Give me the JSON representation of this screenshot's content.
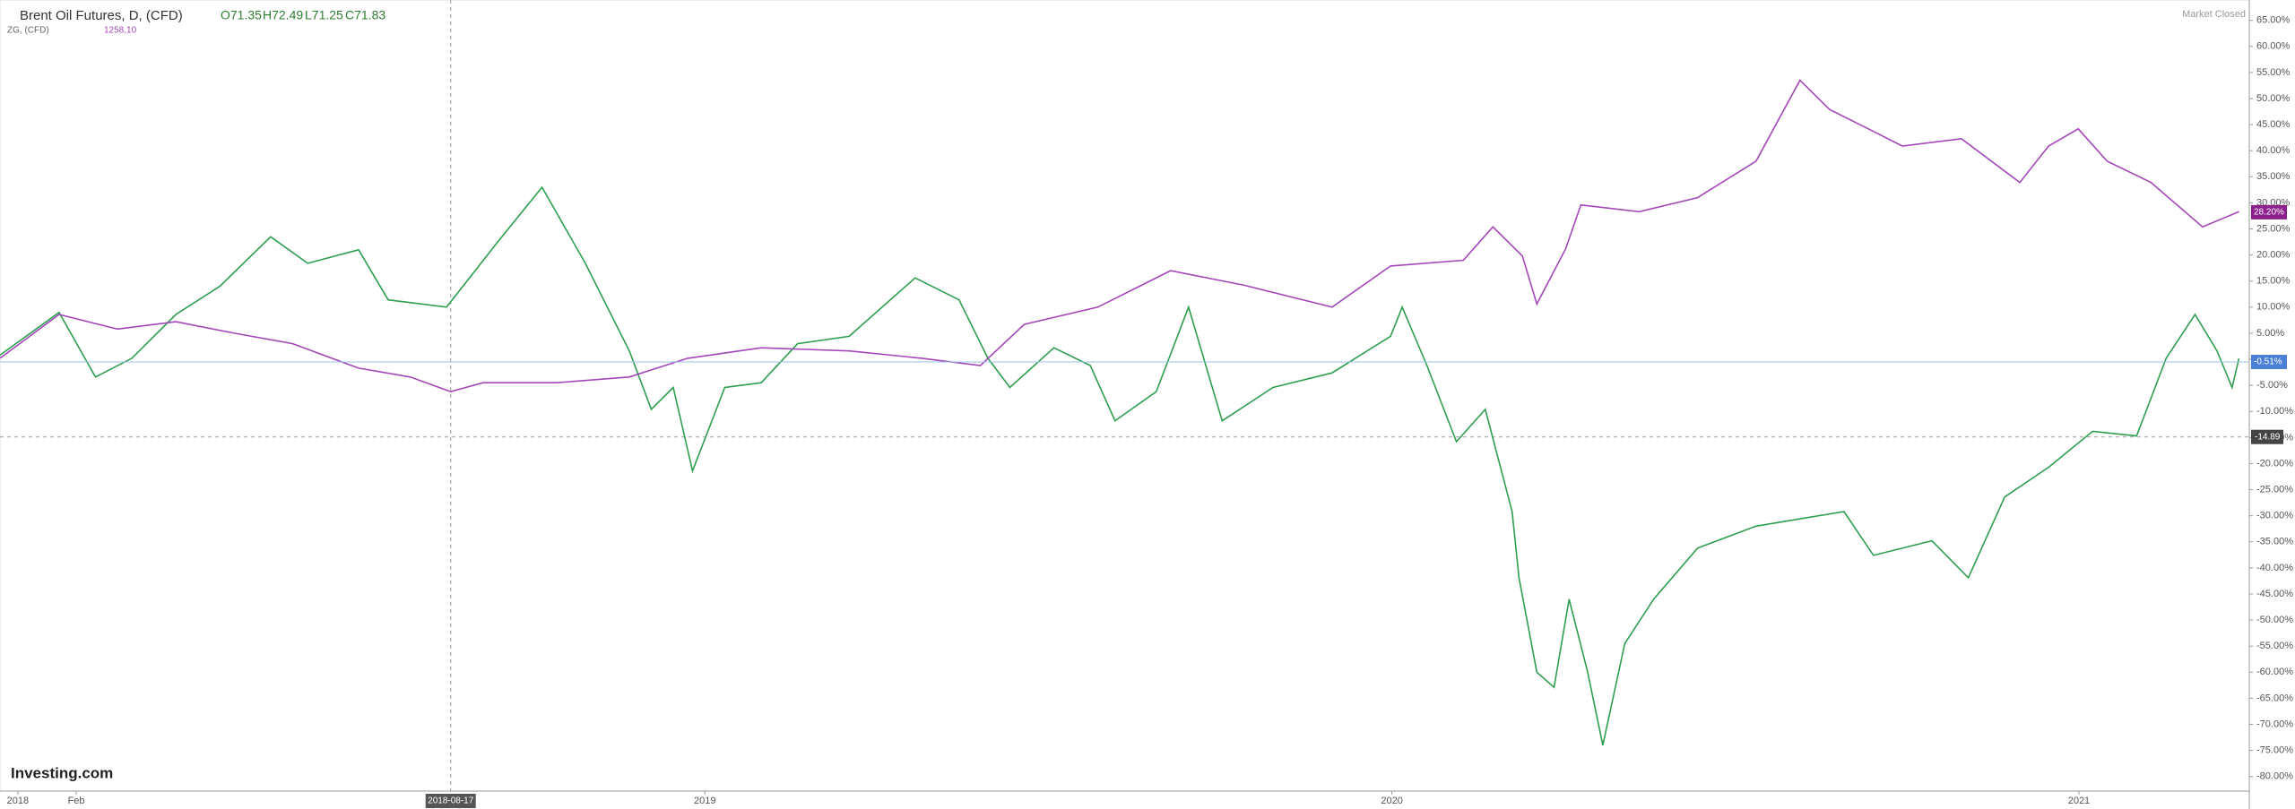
{
  "chart_data": {
    "type": "line",
    "title": "Brent Oil Futures, D, (CFD)",
    "ohlc": [
      "O71.35",
      "H72.49",
      "L71.25",
      "C71.83"
    ],
    "compare_label": "ZG, (CFD)",
    "compare_value": "1258.10",
    "status": "Market Closed",
    "logo": "Investing.com",
    "xlim": [
      2017.974,
      2021.248
    ],
    "xticks": [
      2018,
      {
        "value": 2018.085,
        "label": "Feb"
      },
      2019,
      2020,
      2021
    ],
    "ylim": [
      -82.8,
      68.9
    ],
    "yticks": [
      {
        "value": 65,
        "label": "65.00%"
      },
      {
        "value": 60,
        "label": "60.00%"
      },
      {
        "value": 55,
        "label": "55.00%"
      },
      {
        "value": 50,
        "label": "50.00%"
      },
      {
        "value": 45,
        "label": "45.00%"
      },
      {
        "value": 40,
        "label": "40.00%"
      },
      {
        "value": 35,
        "label": "35.00%"
      },
      {
        "value": 30,
        "label": "30.00%"
      },
      {
        "value": 25,
        "label": "25.00%"
      },
      {
        "value": 20,
        "label": "20.00%"
      },
      {
        "value": 15,
        "label": "15.00%"
      },
      {
        "value": 10,
        "label": "10.00%"
      },
      {
        "value": 5,
        "label": "5.00%"
      },
      {
        "value": 0,
        "label": "0.00%"
      },
      {
        "value": -5,
        "label": "-5.00%"
      },
      {
        "value": -10,
        "label": "-10.00%"
      },
      {
        "value": -15,
        "label": "-15.00%"
      },
      {
        "value": -20,
        "label": "-20.00%"
      },
      {
        "value": -25,
        "label": "-25.00%"
      },
      {
        "value": -30,
        "label": "-30.00%"
      },
      {
        "value": -35,
        "label": "-35.00%"
      },
      {
        "value": -40,
        "label": "-40.00%"
      },
      {
        "value": -45,
        "label": "-45.00%"
      },
      {
        "value": -50,
        "label": "-50.00%"
      },
      {
        "value": -55,
        "label": "-55.00%"
      },
      {
        "value": -60,
        "label": "-60.00%"
      },
      {
        "value": -65,
        "label": "-65.00%"
      },
      {
        "value": -70,
        "label": "-70.00%"
      },
      {
        "value": -75,
        "label": "-75.00%"
      },
      {
        "value": -80,
        "label": "-80.00%"
      }
    ],
    "grid": false,
    "series": [
      {
        "name": "Brent Oil Futures",
        "color": "#2e9e4f",
        "x": [
          2017.974,
          2018.06,
          2018.113,
          2018.166,
          2018.23,
          2018.294,
          2018.368,
          2018.422,
          2018.496,
          2018.539,
          2018.624,
          2018.699,
          2018.763,
          2018.826,
          2018.89,
          2018.922,
          2018.954,
          2018.982,
          2019.029,
          2019.082,
          2019.135,
          2019.21,
          2019.306,
          2019.37,
          2019.412,
          2019.444,
          2019.508,
          2019.561,
          2019.597,
          2019.657,
          2019.704,
          2019.753,
          2019.827,
          2019.913,
          2019.998,
          2020.015,
          2020.051,
          2020.094,
          2020.136,
          2020.175,
          2020.185,
          2020.211,
          2020.236,
          2020.258,
          2020.285,
          2020.307,
          2020.339,
          2020.381,
          2020.445,
          2020.53,
          2020.658,
          2020.701,
          2020.786,
          2020.839,
          2020.892,
          2020.956,
          2021.02,
          2021.084,
          2021.127,
          2021.169,
          2021.201,
          2021.223,
          2021.233
        ],
        "values": [
          0.8,
          9,
          -3.4,
          0.2,
          8.6,
          14,
          23.5,
          18.4,
          21,
          11.4,
          10,
          22.6,
          33,
          18.4,
          1.6,
          -9.6,
          -5.4,
          -21.4,
          -5.4,
          -4.5,
          3,
          4.4,
          15.6,
          11.4,
          0.2,
          -5.4,
          2.2,
          -1.2,
          -11.8,
          -6.2,
          10,
          -11.8,
          -5.4,
          -2.6,
          4.4,
          10,
          -1.2,
          -15.8,
          -9.6,
          -29.2,
          -41.9,
          -60,
          -62.9,
          -46,
          -60,
          -74,
          -54.5,
          -46,
          -36.2,
          -32,
          -29.2,
          -37.6,
          -34.8,
          -41.9,
          -26.4,
          -20.7,
          -13.8,
          -14.7,
          0.2,
          8.6,
          1.6,
          -5.4,
          0.2
        ]
      },
      {
        "name": "ZG, (CFD)",
        "color": "#a347b8",
        "x": [
          2017.974,
          2018.06,
          2018.145,
          2018.23,
          2018.315,
          2018.4,
          2018.496,
          2018.571,
          2018.63,
          2018.677,
          2018.784,
          2018.89,
          2018.975,
          2019.082,
          2019.21,
          2019.316,
          2019.401,
          2019.465,
          2019.572,
          2019.678,
          2019.785,
          2019.913,
          2019.998,
          2020.104,
          2020.147,
          2020.19,
          2020.211,
          2020.253,
          2020.275,
          2020.36,
          2020.445,
          2020.53,
          2020.594,
          2020.637,
          2020.701,
          2020.743,
          2020.829,
          2020.914,
          2020.956,
          2020.999,
          2021.041,
          2021.105,
          2021.18,
          2021.233
        ],
        "values": [
          0.2,
          8.6,
          5.8,
          7.2,
          5,
          3,
          -1.7,
          -3.4,
          -6.2,
          -4.5,
          -4.5,
          -3.4,
          0.2,
          2.2,
          1.6,
          0.2,
          -1.2,
          6.7,
          10,
          17,
          14.2,
          10,
          17.9,
          19,
          25.4,
          19.8,
          10.6,
          21.2,
          29.6,
          28.3,
          31,
          38,
          53.5,
          47.9,
          43.7,
          40.9,
          42.3,
          33.9,
          40.9,
          44.2,
          38,
          33.9,
          25.4,
          28.3
        ]
      }
    ],
    "price_labels": [
      {
        "value": 28.2,
        "label": "28.20%",
        "color": "#8e1f8e"
      },
      {
        "value": -0.51,
        "label": "-0.51%",
        "color": "#4a7fd6"
      }
    ],
    "crosshair": {
      "x": {
        "value": 2018.63,
        "label": "2018-08-17"
      },
      "y": {
        "value": -14.89,
        "label": "-14.89"
      }
    }
  }
}
